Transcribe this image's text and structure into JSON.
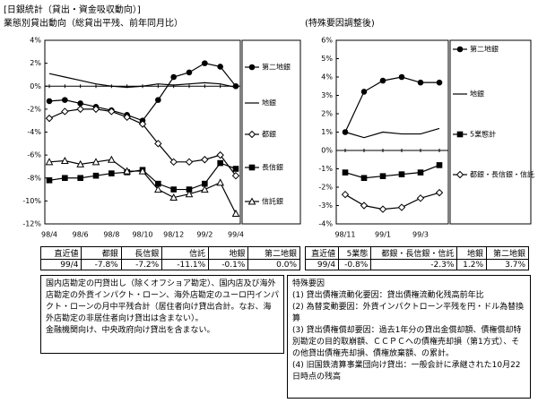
{
  "header": {
    "title": "[日銀統計（貸出・資金吸収動向）]",
    "subtitle": "業態別貸出動向（総貸出平残、前年同月比）"
  },
  "chart_data": [
    {
      "type": "line",
      "categories": [
        "98/4",
        null,
        "98/6",
        null,
        "98/8",
        null,
        "98/10",
        null,
        "98/12",
        null,
        "99/2",
        null,
        "99/4"
      ],
      "ylim": [
        -12,
        4
      ],
      "yticks": [
        {
          "value": 4,
          "label": "4%"
        },
        {
          "value": 2,
          "label": "2%"
        },
        {
          "value": 0,
          "label": "0%"
        },
        {
          "value": -2,
          "label": "-2%"
        },
        {
          "value": -4,
          "label": "-4%"
        },
        {
          "value": -6,
          "label": "-6%"
        },
        {
          "value": -8,
          "label": "-8%"
        },
        {
          "value": -10,
          "label": "-10%"
        },
        {
          "value": -12,
          "label": "-12%"
        }
      ],
      "series": [
        {
          "name": "第二地銀",
          "color": "#000000",
          "marker": "circle-filled",
          "values": [
            -1.3,
            -1.2,
            -1.5,
            -1.8,
            -2.1,
            -2.5,
            -3.0,
            -1.2,
            0.8,
            1.2,
            2.0,
            1.7,
            0.0
          ]
        },
        {
          "name": "地銀",
          "color": "#000000",
          "marker": "none",
          "values": [
            1.1,
            0.8,
            0.5,
            0.2,
            0.0,
            -0.1,
            0.0,
            0.2,
            0.1,
            0.2,
            0.3,
            0.2,
            -0.1
          ]
        },
        {
          "name": "都銀",
          "color": "#000000",
          "marker": "diamond-open",
          "values": [
            -2.8,
            -2.2,
            -2.0,
            -2.0,
            -2.2,
            -2.7,
            -3.3,
            -5.0,
            -6.6,
            -6.6,
            -6.4,
            -6.0,
            -7.8
          ]
        },
        {
          "name": "長信銀",
          "color": "#000000",
          "marker": "square-filled",
          "values": [
            -8.2,
            -8.0,
            -8.0,
            -7.8,
            -7.6,
            -7.5,
            -7.3,
            -8.5,
            -9.0,
            -9.0,
            -8.5,
            -6.7,
            -7.2
          ]
        },
        {
          "name": "信託銀",
          "color": "#000000",
          "marker": "triangle-open",
          "values": [
            -6.6,
            -6.5,
            -6.8,
            -6.6,
            -6.4,
            -7.4,
            -7.4,
            -9.0,
            -9.7,
            -9.4,
            -9.0,
            -8.4,
            -11.1
          ]
        }
      ]
    },
    {
      "type": "line",
      "title": "(特殊要因調整後)",
      "categories": [
        "98/11",
        null,
        "99/1",
        null,
        "99/3",
        null
      ],
      "ylim": [
        -4,
        6
      ],
      "yticks": [
        {
          "value": 6,
          "label": "6%"
        },
        {
          "value": 5,
          "label": "5%"
        },
        {
          "value": 4,
          "label": "4%"
        },
        {
          "value": 3,
          "label": "3%"
        },
        {
          "value": 2,
          "label": "2%"
        },
        {
          "value": 1,
          "label": "1%"
        },
        {
          "value": 0,
          "label": "0%"
        },
        {
          "value": -1,
          "label": "-1%"
        },
        {
          "value": -2,
          "label": "-2%"
        },
        {
          "value": -3,
          "label": "-3%"
        },
        {
          "value": -4,
          "label": "-4%"
        }
      ],
      "series": [
        {
          "name": "第二地銀",
          "color": "#000000",
          "marker": "circle-filled",
          "values": [
            1.0,
            3.2,
            3.8,
            4.0,
            3.7,
            3.7
          ]
        },
        {
          "name": "地銀",
          "color": "#000000",
          "marker": "none",
          "values": [
            1.0,
            0.7,
            1.0,
            0.9,
            0.9,
            1.2
          ]
        },
        {
          "name": "5業態計",
          "color": "#000000",
          "marker": "square-filled",
          "values": [
            -1.2,
            -1.5,
            -1.4,
            -1.3,
            -1.2,
            -0.8
          ]
        },
        {
          "name": "都銀・長信銀・信託",
          "color": "#000000",
          "marker": "diamond-open",
          "values": [
            -2.4,
            -3.0,
            -3.2,
            -3.1,
            -2.6,
            -2.3
          ]
        }
      ]
    }
  ],
  "tables": [
    {
      "rows": [
        [
          "直近値",
          "都銀",
          "長信銀",
          "信託",
          "地銀",
          "第二地銀"
        ],
        [
          "99/4",
          "-7.8%",
          "-7.2%",
          "-11.1%",
          "-0.1%",
          "0.0%"
        ]
      ]
    },
    {
      "rows": [
        [
          "直近値",
          "5業態",
          "都銀・長信銀・信託",
          "地銀",
          "第二地銀"
        ],
        [
          "99/4",
          "-0.8%",
          "-2.3%",
          "1.2%",
          "3.7%"
        ]
      ]
    }
  ],
  "notes": [
    {
      "lines": [
        "国内店勘定の円貸出し（除くオフショア勘定）、国内店及び海外店勘定の外貨インパクト・ローン、海外店勘定のユーロ円インパクト・ローンの月中平残合計（居住者向け貸出合計。なお、海外店勘定の非居住者向け貸出は含まない）。",
        "金融機関向け、中央政府向け貸出を含まない。"
      ]
    },
    {
      "title": "特殊要因",
      "lines": [
        "(1) 貸出債権流動化要因：貸出債権流動化残高前年比",
        "(2) 為替変動要因：外貨インパクトローン平残を円・ドル為替換算",
        "(3) 貸出債権償却要因：過去1年分の貸出金償却額、債権償却特別勘定の目的取崩額、ＣＣＰＣへの債権売却損（第1方式）、その他貸出債権売却損、債権放棄額、の累計。",
        "(4) 旧国鉄清算事業団向け貸出：一般会計に承継された10月22日時点の残高"
      ]
    }
  ]
}
